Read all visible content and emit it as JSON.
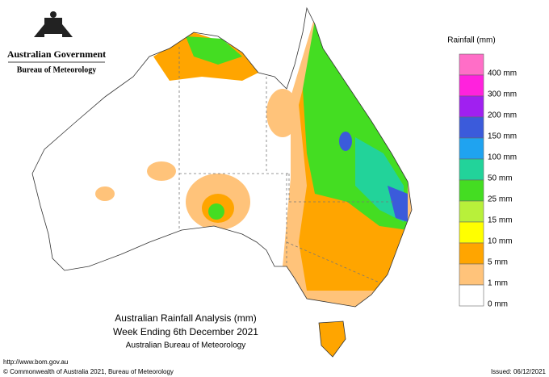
{
  "header": {
    "government": "Australian Government",
    "agency": "Bureau of Meteorology"
  },
  "legend": {
    "title": "Rainfall (mm)",
    "items": [
      {
        "label": "400 mm",
        "color": "#ff6ec7"
      },
      {
        "label": "300 mm",
        "color": "#ff22dd"
      },
      {
        "label": "200 mm",
        "color": "#a020f0"
      },
      {
        "label": "150 mm",
        "color": "#3b5bdb"
      },
      {
        "label": "100 mm",
        "color": "#1fa3f0"
      },
      {
        "label": "50 mm",
        "color": "#22d39a"
      },
      {
        "label": "25 mm",
        "color": "#44dd22"
      },
      {
        "label": "15 mm",
        "color": "#b8f03a"
      },
      {
        "label": "10 mm",
        "color": "#ffff00"
      },
      {
        "label": "5 mm",
        "color": "#ffa500"
      },
      {
        "label": "1 mm",
        "color": "#ffc37a"
      },
      {
        "label": "0 mm",
        "color": "#ffffff"
      }
    ]
  },
  "caption": {
    "line1": "Australian Rainfall Analysis (mm)",
    "line2": "Week Ending 6th December 2021",
    "line3": "Australian Bureau of Meteorology"
  },
  "footer": {
    "url": "http://www.bom.gov.au",
    "copyright": "© Commonwealth of Australia 2021, Bureau of Meteorology",
    "issued": "Issued: 06/12/2021"
  }
}
